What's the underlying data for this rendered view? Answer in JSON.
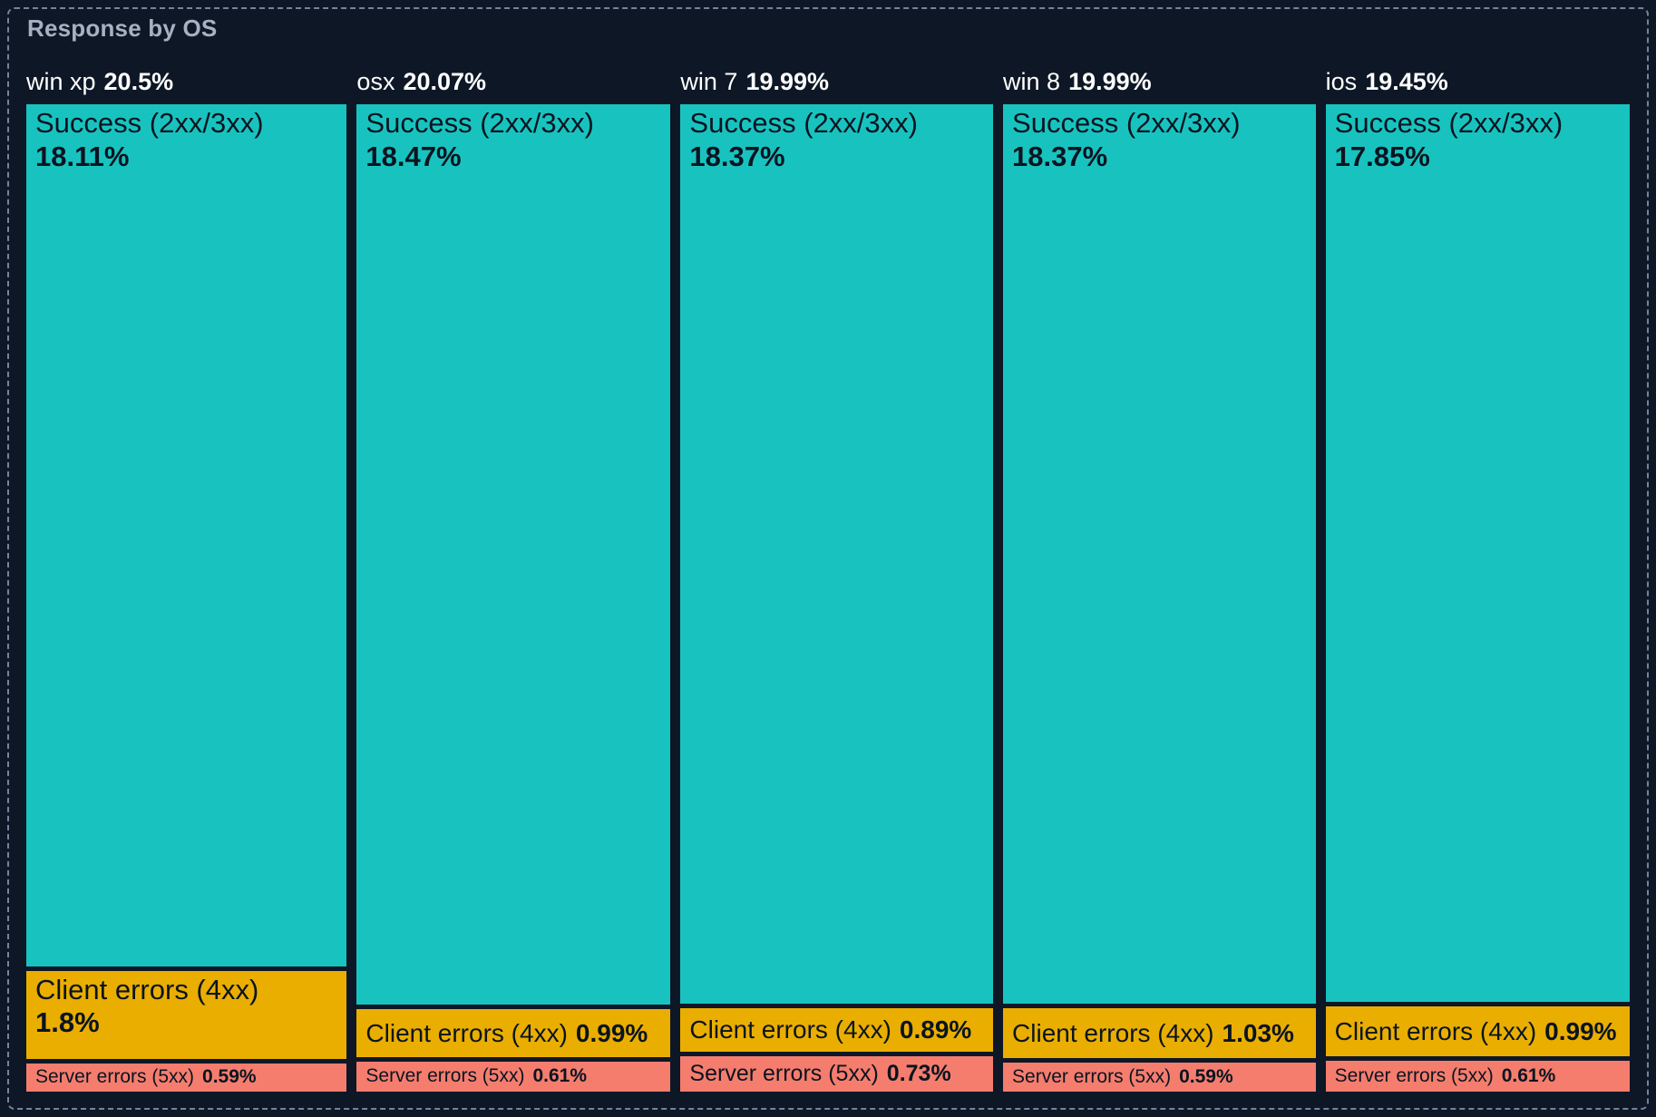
{
  "title": "Response by OS",
  "colors": {
    "background": "#0e1726",
    "panel_border": "#74849b",
    "title_text": "#a6b2c1",
    "header_text": "#ffffff",
    "block_text": "#0a1420",
    "success": "#18c3bf",
    "client": "#eaae00",
    "server": "#f57d6e"
  },
  "columns": [
    {
      "name": "win xp",
      "pct": "20.5%",
      "value": 20.5,
      "blocks": [
        {
          "kind": "success",
          "label": "Success (2xx/3xx)",
          "pct": "18.11%",
          "value": 18.11
        },
        {
          "kind": "client",
          "label": "Client errors (4xx)",
          "pct": "1.8%",
          "value": 1.8
        },
        {
          "kind": "server",
          "label": "Server errors (5xx)",
          "pct": "0.59%",
          "value": 0.59
        }
      ]
    },
    {
      "name": "osx",
      "pct": "20.07%",
      "value": 20.07,
      "blocks": [
        {
          "kind": "success",
          "label": "Success (2xx/3xx)",
          "pct": "18.47%",
          "value": 18.47
        },
        {
          "kind": "client",
          "label": "Client errors (4xx)",
          "pct": "0.99%",
          "value": 0.99
        },
        {
          "kind": "server",
          "label": "Server errors (5xx)",
          "pct": "0.61%",
          "value": 0.61
        }
      ]
    },
    {
      "name": "win 7",
      "pct": "19.99%",
      "value": 19.99,
      "blocks": [
        {
          "kind": "success",
          "label": "Success (2xx/3xx)",
          "pct": "18.37%",
          "value": 18.37
        },
        {
          "kind": "client",
          "label": "Client errors (4xx)",
          "pct": "0.89%",
          "value": 0.89
        },
        {
          "kind": "server",
          "label": "Server errors (5xx)",
          "pct": "0.73%",
          "value": 0.73
        }
      ]
    },
    {
      "name": "win 8",
      "pct": "19.99%",
      "value": 19.99,
      "blocks": [
        {
          "kind": "success",
          "label": "Success (2xx/3xx)",
          "pct": "18.37%",
          "value": 18.37
        },
        {
          "kind": "client",
          "label": "Client errors (4xx)",
          "pct": "1.03%",
          "value": 1.03
        },
        {
          "kind": "server",
          "label": "Server errors (5xx)",
          "pct": "0.59%",
          "value": 0.59
        }
      ]
    },
    {
      "name": "ios",
      "pct": "19.45%",
      "value": 19.45,
      "blocks": [
        {
          "kind": "success",
          "label": "Success (2xx/3xx)",
          "pct": "17.85%",
          "value": 17.85
        },
        {
          "kind": "client",
          "label": "Client errors (4xx)",
          "pct": "0.99%",
          "value": 0.99
        },
        {
          "kind": "server",
          "label": "Server errors (5xx)",
          "pct": "0.61%",
          "value": 0.61
        }
      ]
    }
  ],
  "chart_data": {
    "type": "treemap",
    "title": "Response by OS",
    "unit": "%",
    "layout": "one column per OS (width proportional to value), children stacked vertically (height proportional to value), legend off",
    "category_colors": {
      "Success (2xx/3xx)": "#18c3bf",
      "Client errors (4xx)": "#eaae00",
      "Server errors (5xx)": "#f57d6e"
    },
    "groups": [
      {
        "name": "win xp",
        "value": 20.5,
        "children": [
          {
            "name": "Success (2xx/3xx)",
            "value": 18.11
          },
          {
            "name": "Client errors (4xx)",
            "value": 1.8
          },
          {
            "name": "Server errors (5xx)",
            "value": 0.59
          }
        ]
      },
      {
        "name": "osx",
        "value": 20.07,
        "children": [
          {
            "name": "Success (2xx/3xx)",
            "value": 18.47
          },
          {
            "name": "Client errors (4xx)",
            "value": 0.99
          },
          {
            "name": "Server errors (5xx)",
            "value": 0.61
          }
        ]
      },
      {
        "name": "win 7",
        "value": 19.99,
        "children": [
          {
            "name": "Success (2xx/3xx)",
            "value": 18.37
          },
          {
            "name": "Client errors (4xx)",
            "value": 0.89
          },
          {
            "name": "Server errors (5xx)",
            "value": 0.73
          }
        ]
      },
      {
        "name": "win 8",
        "value": 19.99,
        "children": [
          {
            "name": "Success (2xx/3xx)",
            "value": 18.37
          },
          {
            "name": "Client errors (4xx)",
            "value": 1.03
          },
          {
            "name": "Server errors (5xx)",
            "value": 0.59
          }
        ]
      },
      {
        "name": "ios",
        "value": 19.45,
        "children": [
          {
            "name": "Success (2xx/3xx)",
            "value": 17.85
          },
          {
            "name": "Client errors (4xx)",
            "value": 0.99
          },
          {
            "name": "Server errors (5xx)",
            "value": 0.61
          }
        ]
      }
    ]
  }
}
